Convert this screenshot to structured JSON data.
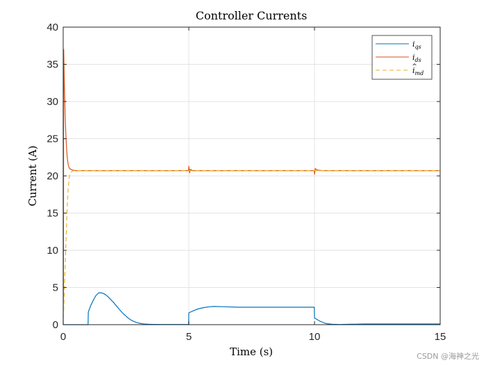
{
  "chart_data": {
    "type": "line",
    "title": "Controller Currents",
    "xlabel": "Time (s)",
    "ylabel": "Current (A)",
    "xlim": [
      0,
      15
    ],
    "ylim": [
      0,
      40
    ],
    "xticks": [
      "0",
      "5",
      "10",
      "15"
    ],
    "yticks": [
      "0",
      "5",
      "10",
      "15",
      "20",
      "25",
      "30",
      "35",
      "40"
    ],
    "grid": true,
    "legend_position": "top-right",
    "series": [
      {
        "name": "i_qs",
        "color": "#0072BD",
        "style": "solid",
        "points": [
          [
            0,
            0
          ],
          [
            0.99,
            0
          ],
          [
            1.0,
            1.7
          ],
          [
            1.1,
            2.6
          ],
          [
            1.2,
            3.3
          ],
          [
            1.3,
            3.9
          ],
          [
            1.4,
            4.25
          ],
          [
            1.5,
            4.3
          ],
          [
            1.6,
            4.2
          ],
          [
            1.7,
            4.0
          ],
          [
            1.8,
            3.7
          ],
          [
            1.9,
            3.35
          ],
          [
            2.0,
            3.0
          ],
          [
            2.1,
            2.6
          ],
          [
            2.2,
            2.2
          ],
          [
            2.3,
            1.8
          ],
          [
            2.4,
            1.45
          ],
          [
            2.5,
            1.15
          ],
          [
            2.6,
            0.85
          ],
          [
            2.7,
            0.62
          ],
          [
            2.8,
            0.45
          ],
          [
            2.9,
            0.32
          ],
          [
            3.0,
            0.22
          ],
          [
            3.1,
            0.15
          ],
          [
            3.2,
            0.1
          ],
          [
            3.4,
            0.06
          ],
          [
            3.6,
            0.04
          ],
          [
            4.0,
            0.03
          ],
          [
            4.99,
            0.03
          ],
          [
            5.0,
            1.6
          ],
          [
            5.2,
            1.9
          ],
          [
            5.4,
            2.15
          ],
          [
            5.6,
            2.3
          ],
          [
            5.8,
            2.4
          ],
          [
            6.0,
            2.45
          ],
          [
            6.5,
            2.4
          ],
          [
            7.0,
            2.35
          ],
          [
            8.0,
            2.35
          ],
          [
            9.0,
            2.35
          ],
          [
            9.99,
            2.35
          ],
          [
            10.0,
            0.9
          ],
          [
            10.1,
            0.7
          ],
          [
            10.2,
            0.5
          ],
          [
            10.3,
            0.35
          ],
          [
            10.4,
            0.22
          ],
          [
            10.5,
            0.13
          ],
          [
            10.7,
            0.06
          ],
          [
            11.0,
            0.03
          ],
          [
            12.0,
            0.1
          ],
          [
            13.0,
            0.1
          ],
          [
            15.0,
            0.1
          ]
        ]
      },
      {
        "name": "i_ds",
        "color": "#D95319",
        "style": "solid",
        "points": [
          [
            0,
            0
          ],
          [
            0.01,
            5
          ],
          [
            0.02,
            37
          ],
          [
            0.05,
            32
          ],
          [
            0.08,
            28
          ],
          [
            0.1,
            26
          ],
          [
            0.13,
            24
          ],
          [
            0.16,
            22.5
          ],
          [
            0.2,
            21.5
          ],
          [
            0.25,
            21.0
          ],
          [
            0.35,
            20.8
          ],
          [
            0.5,
            20.7
          ],
          [
            1.0,
            20.7
          ],
          [
            4.99,
            20.7
          ],
          [
            5.0,
            21.3
          ],
          [
            5.03,
            20.4
          ],
          [
            5.06,
            20.9
          ],
          [
            5.15,
            20.7
          ],
          [
            9.99,
            20.7
          ],
          [
            10.0,
            20.2
          ],
          [
            10.03,
            21.0
          ],
          [
            10.1,
            20.8
          ],
          [
            10.3,
            20.7
          ],
          [
            15.0,
            20.7
          ]
        ]
      },
      {
        "name": "î_md",
        "color": "#EDB120",
        "style": "dashed",
        "points": [
          [
            0,
            0
          ],
          [
            0.05,
            5
          ],
          [
            0.1,
            10
          ],
          [
            0.15,
            15
          ],
          [
            0.2,
            18.5
          ],
          [
            0.25,
            20
          ],
          [
            0.3,
            20.5
          ],
          [
            0.4,
            20.7
          ],
          [
            15.0,
            20.7
          ]
        ]
      }
    ]
  },
  "legend": {
    "entries": [
      {
        "base": "i",
        "sub": "qs",
        "hat": false
      },
      {
        "base": "i",
        "sub": "ds",
        "hat": false
      },
      {
        "base": "i",
        "sub": "md",
        "hat": true
      }
    ]
  },
  "watermark": "CSDN @海神之光"
}
